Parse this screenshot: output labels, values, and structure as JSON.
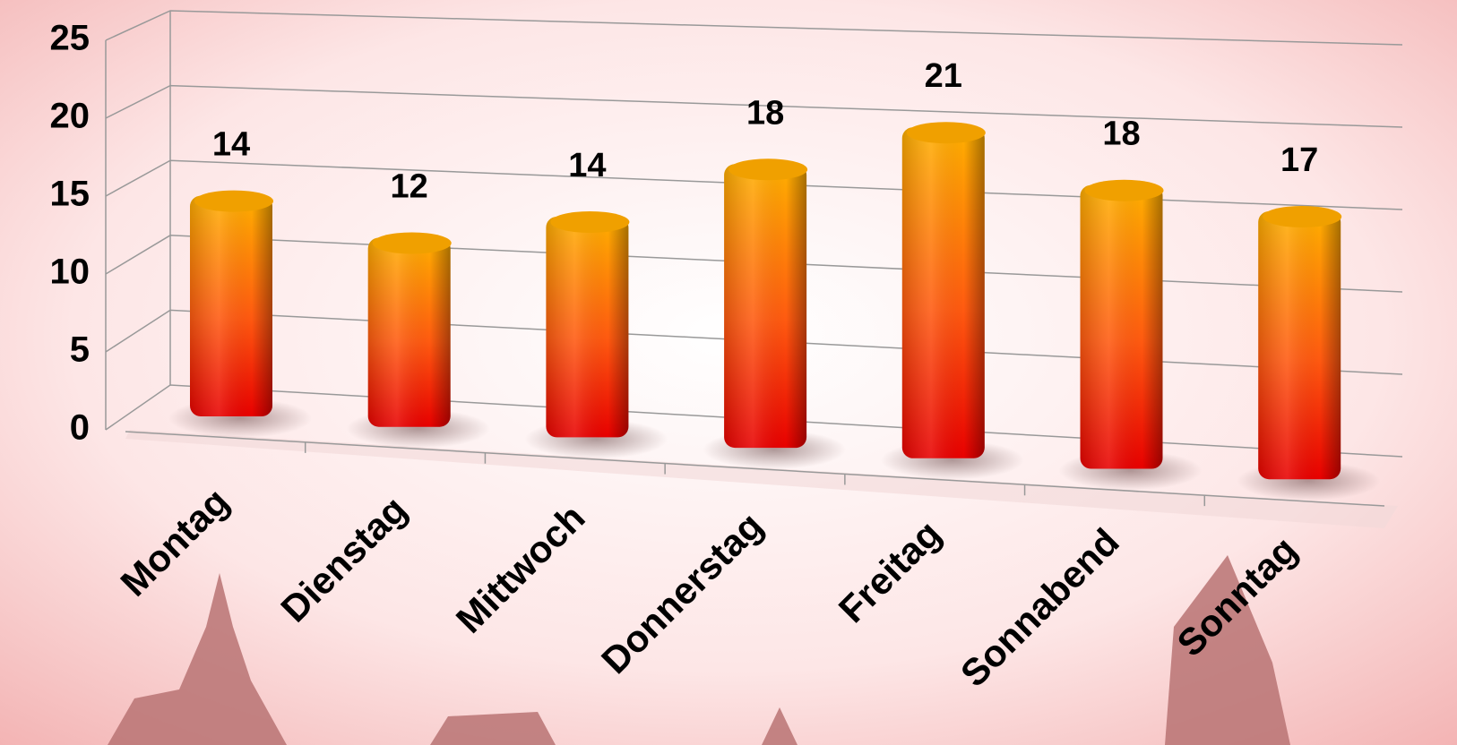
{
  "chart_data": {
    "type": "bar3d",
    "categories": [
      "Montag",
      "Dienstag",
      "Mittwoch",
      "Donnerstag",
      "Freitag",
      "Sonnabend",
      "Sonntag"
    ],
    "values": [
      14,
      12,
      14,
      18,
      21,
      18,
      17
    ],
    "ylim": [
      0,
      25
    ],
    "yticks": [
      0,
      5,
      10,
      15,
      20,
      25
    ],
    "grid": true,
    "color": "#ff6a00"
  }
}
